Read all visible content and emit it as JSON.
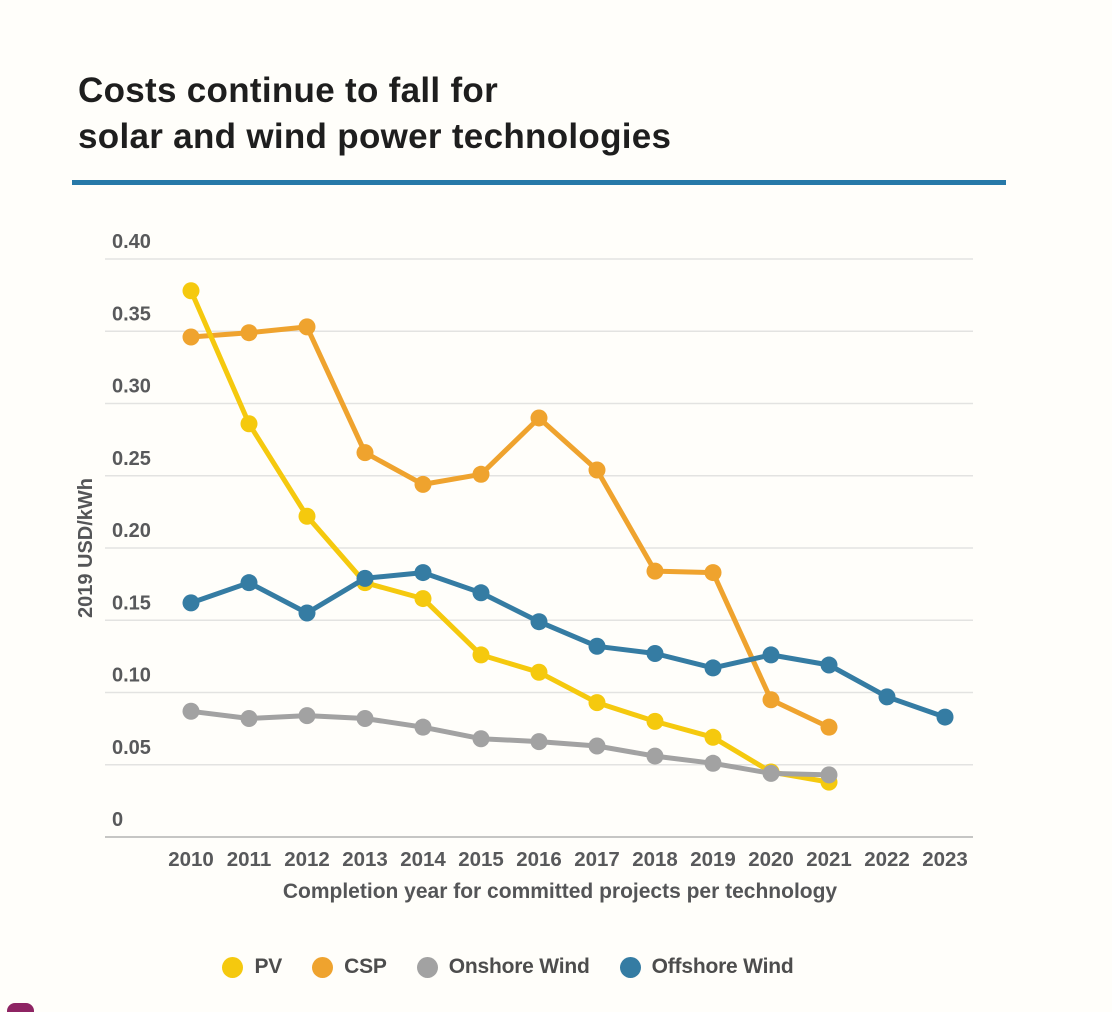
{
  "title": {
    "line1": "Costs continue to fall for",
    "line2": "solar and wind power technologies"
  },
  "colors": {
    "title_text": "#1e1e1e",
    "divider": "#2779a8",
    "background": "#fffefa",
    "gridline": "#e3e3e1",
    "axis_line": "#c6c6c4",
    "tick_label": "#58595b",
    "axis_title": "#545557",
    "legend_label": "#4d4d4d",
    "corner_mark": "#8e2463",
    "pv": "#f5c90e",
    "csp": "#efa32e",
    "onshore_wind": "#a2a2a2",
    "offshore_wind": "#357ca3"
  },
  "chart_data": {
    "type": "line",
    "title": "Costs continue to fall for solar and wind power technologies",
    "xlabel": "Completion year for committed projects per technology",
    "ylabel": "2019 USD/kWh",
    "x": [
      2010,
      2011,
      2012,
      2013,
      2014,
      2015,
      2016,
      2017,
      2018,
      2019,
      2020,
      2021,
      2022,
      2023
    ],
    "ylim": [
      0,
      0.4
    ],
    "grid": true,
    "legend_position": "bottom",
    "y_ticks": [
      {
        "label": "0.40",
        "value": 0.4
      },
      {
        "label": "0.35",
        "value": 0.35
      },
      {
        "label": "0.30",
        "value": 0.3
      },
      {
        "label": "0.25",
        "value": 0.25
      },
      {
        "label": "0.20",
        "value": 0.2
      },
      {
        "label": "0.15",
        "value": 0.15
      },
      {
        "label": "0.10",
        "value": 0.1
      },
      {
        "label": "0.05",
        "value": 0.05
      },
      {
        "label": "0",
        "value": 0
      }
    ],
    "series": [
      {
        "name": "PV",
        "color_key": "pv",
        "values": [
          0.378,
          0.286,
          0.222,
          0.176,
          0.165,
          0.126,
          0.114,
          0.093,
          0.08,
          0.069,
          0.045,
          0.038,
          null,
          null
        ]
      },
      {
        "name": "CSP",
        "color_key": "csp",
        "values": [
          0.346,
          0.349,
          0.353,
          0.266,
          0.244,
          0.251,
          0.29,
          0.254,
          0.184,
          0.183,
          0.095,
          0.076,
          null,
          null
        ]
      },
      {
        "name": "Onshore Wind",
        "color_key": "onshore_wind",
        "values": [
          0.087,
          0.082,
          0.084,
          0.082,
          0.076,
          0.068,
          0.066,
          0.063,
          0.056,
          0.051,
          0.044,
          0.043,
          null,
          null
        ]
      },
      {
        "name": "Offshore Wind",
        "color_key": "offshore_wind",
        "values": [
          0.162,
          0.176,
          0.155,
          0.179,
          0.183,
          0.169,
          0.149,
          0.132,
          0.127,
          0.117,
          0.126,
          0.119,
          0.097,
          0.083
        ]
      }
    ]
  }
}
